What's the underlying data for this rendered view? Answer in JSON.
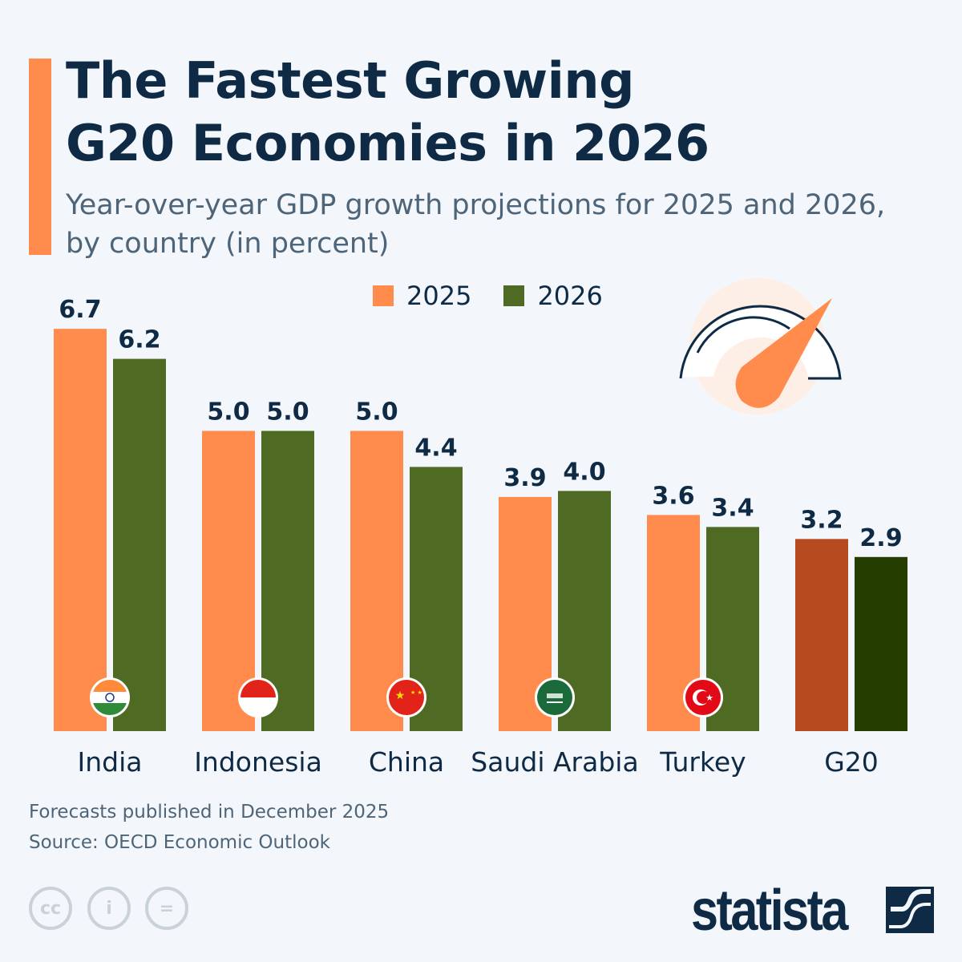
{
  "title_line1": "The Fastest Growing",
  "title_line2": "G20 Economies in 2026",
  "subtitle_line1": "Year-over-year GDP growth projections for 2025 and 2026,",
  "subtitle_line2": "by country (in percent)",
  "footnote": "Forecasts published in December 2025",
  "source": "Source: OECD Economic Outlook",
  "logo": "statista",
  "license_icons": [
    "cc-icon",
    "attribution-icon",
    "no-derivatives-icon"
  ],
  "colors": {
    "y2025": "#ff8b4c",
    "y2026": "#4f6b23",
    "g20_2025": "#b84a20",
    "g20_2026": "#263d00",
    "text": "#0f2a45"
  },
  "chart_data": {
    "type": "bar",
    "categories": [
      "India",
      "Indonesia",
      "China",
      "Saudi Arabia",
      "Turkey",
      "G20"
    ],
    "series": [
      {
        "name": "2025",
        "values": [
          6.7,
          5.0,
          5.0,
          3.9,
          3.6,
          3.2
        ]
      },
      {
        "name": "2026",
        "values": [
          6.2,
          5.0,
          4.4,
          4.0,
          3.4,
          2.9
        ]
      }
    ],
    "flags": [
      "india-flag",
      "indonesia-flag",
      "china-flag",
      "saudi-arabia-flag",
      "turkey-flag",
      null
    ],
    "ylim": [
      0,
      6.7
    ],
    "grid": false,
    "legend": "top"
  }
}
